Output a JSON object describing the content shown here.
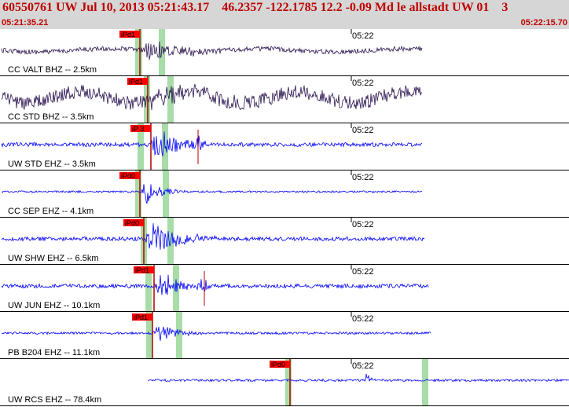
{
  "header": {
    "title": "60550761 UW Jul 10, 2013 05:21:43.17    46.2357 -122.1785 12.2 -0.09 Md le allstadt UW 01    3",
    "start_time": "05:21:35.21",
    "end_time": "05:22:15.70"
  },
  "colors": {
    "header_bg": "#d6d6d6",
    "header_text": "#c00000",
    "bhz_trace": "#2a1450",
    "ehz_trace": "#0000ff",
    "pick_box": "#ff0000",
    "pick_line": "#b00000",
    "window_band": "#a8dca8",
    "separator": "#000000"
  },
  "traces": [
    {
      "label": "CC VALT BHZ -- 2.5km",
      "minute_label": "05:22",
      "pick_label": "iPd1",
      "kind": "BHZ"
    },
    {
      "label": "CC STD BHZ -- 3.5km",
      "minute_label": "05:22",
      "pick_label": "iPd1",
      "kind": "BHZ"
    },
    {
      "label": "UW STD EHZ -- 3.5km",
      "minute_label": "05:22",
      "pick_label": "iP 3",
      "kind": "EHZ"
    },
    {
      "label": "CC SEP EHZ -- 4.1km",
      "minute_label": "05:22",
      "pick_label": "iPd0",
      "kind": "EHZ"
    },
    {
      "label": "UW SHW EHZ -- 6.5km",
      "minute_label": "05:22",
      "pick_label": "iPd0",
      "kind": "EHZ"
    },
    {
      "label": "UW JUN EHZ -- 10.1km",
      "minute_label": "05:22",
      "pick_label": "iPd1",
      "kind": "EHZ"
    },
    {
      "label": "PB B204 EHZ -- 11.1km",
      "minute_label": "05:22",
      "pick_label": "iPd1",
      "kind": "EHZ"
    },
    {
      "label": "UW RCS EHZ -- 78.4km",
      "minute_label": "05:22",
      "pick_label": "iPd0",
      "kind": "EHZ"
    }
  ]
}
